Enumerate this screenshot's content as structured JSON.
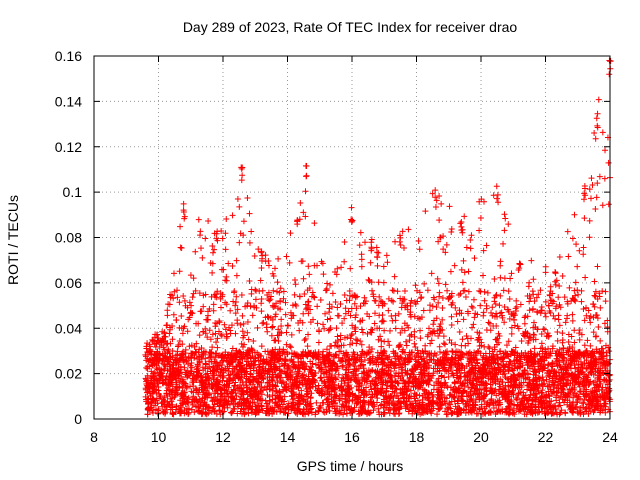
{
  "chart_data": {
    "type": "scatter",
    "title": "Day 289 of 2023, Rate Of TEC Index for receiver drao",
    "xlabel": "GPS time / hours",
    "ylabel": "ROTI / TECUs",
    "xlim": [
      8,
      24
    ],
    "ylim": [
      0,
      0.16
    ],
    "xticks": [
      "8",
      "10",
      "12",
      "14",
      "16",
      "18",
      "20",
      "22",
      "24"
    ],
    "yticks": [
      "0",
      "0.02",
      "0.04",
      "0.06",
      "0.08",
      "0.1",
      "0.12",
      "0.14",
      "0.16"
    ],
    "grid": true,
    "marker": "+",
    "color": "#ff0000",
    "notes_visible_envelope": [
      {
        "x": 9.6,
        "y": 0.032
      },
      {
        "x": 10.2,
        "y": 0.04
      },
      {
        "x": 10.8,
        "y": 0.095
      },
      {
        "x": 11.8,
        "y": 0.085
      },
      {
        "x": 12.6,
        "y": 0.113
      },
      {
        "x": 13.2,
        "y": 0.075
      },
      {
        "x": 14.3,
        "y": 0.088
      },
      {
        "x": 14.6,
        "y": 0.112
      },
      {
        "x": 15.2,
        "y": 0.06
      },
      {
        "x": 16.0,
        "y": 0.092
      },
      {
        "x": 16.6,
        "y": 0.08
      },
      {
        "x": 17.5,
        "y": 0.082
      },
      {
        "x": 18.6,
        "y": 0.101
      },
      {
        "x": 19.4,
        "y": 0.088
      },
      {
        "x": 20.5,
        "y": 0.103
      },
      {
        "x": 21.2,
        "y": 0.07
      },
      {
        "x": 22.3,
        "y": 0.065
      },
      {
        "x": 23.2,
        "y": 0.103
      },
      {
        "x": 23.6,
        "y": 0.136
      },
      {
        "x": 24.0,
        "y": 0.16
      }
    ]
  }
}
